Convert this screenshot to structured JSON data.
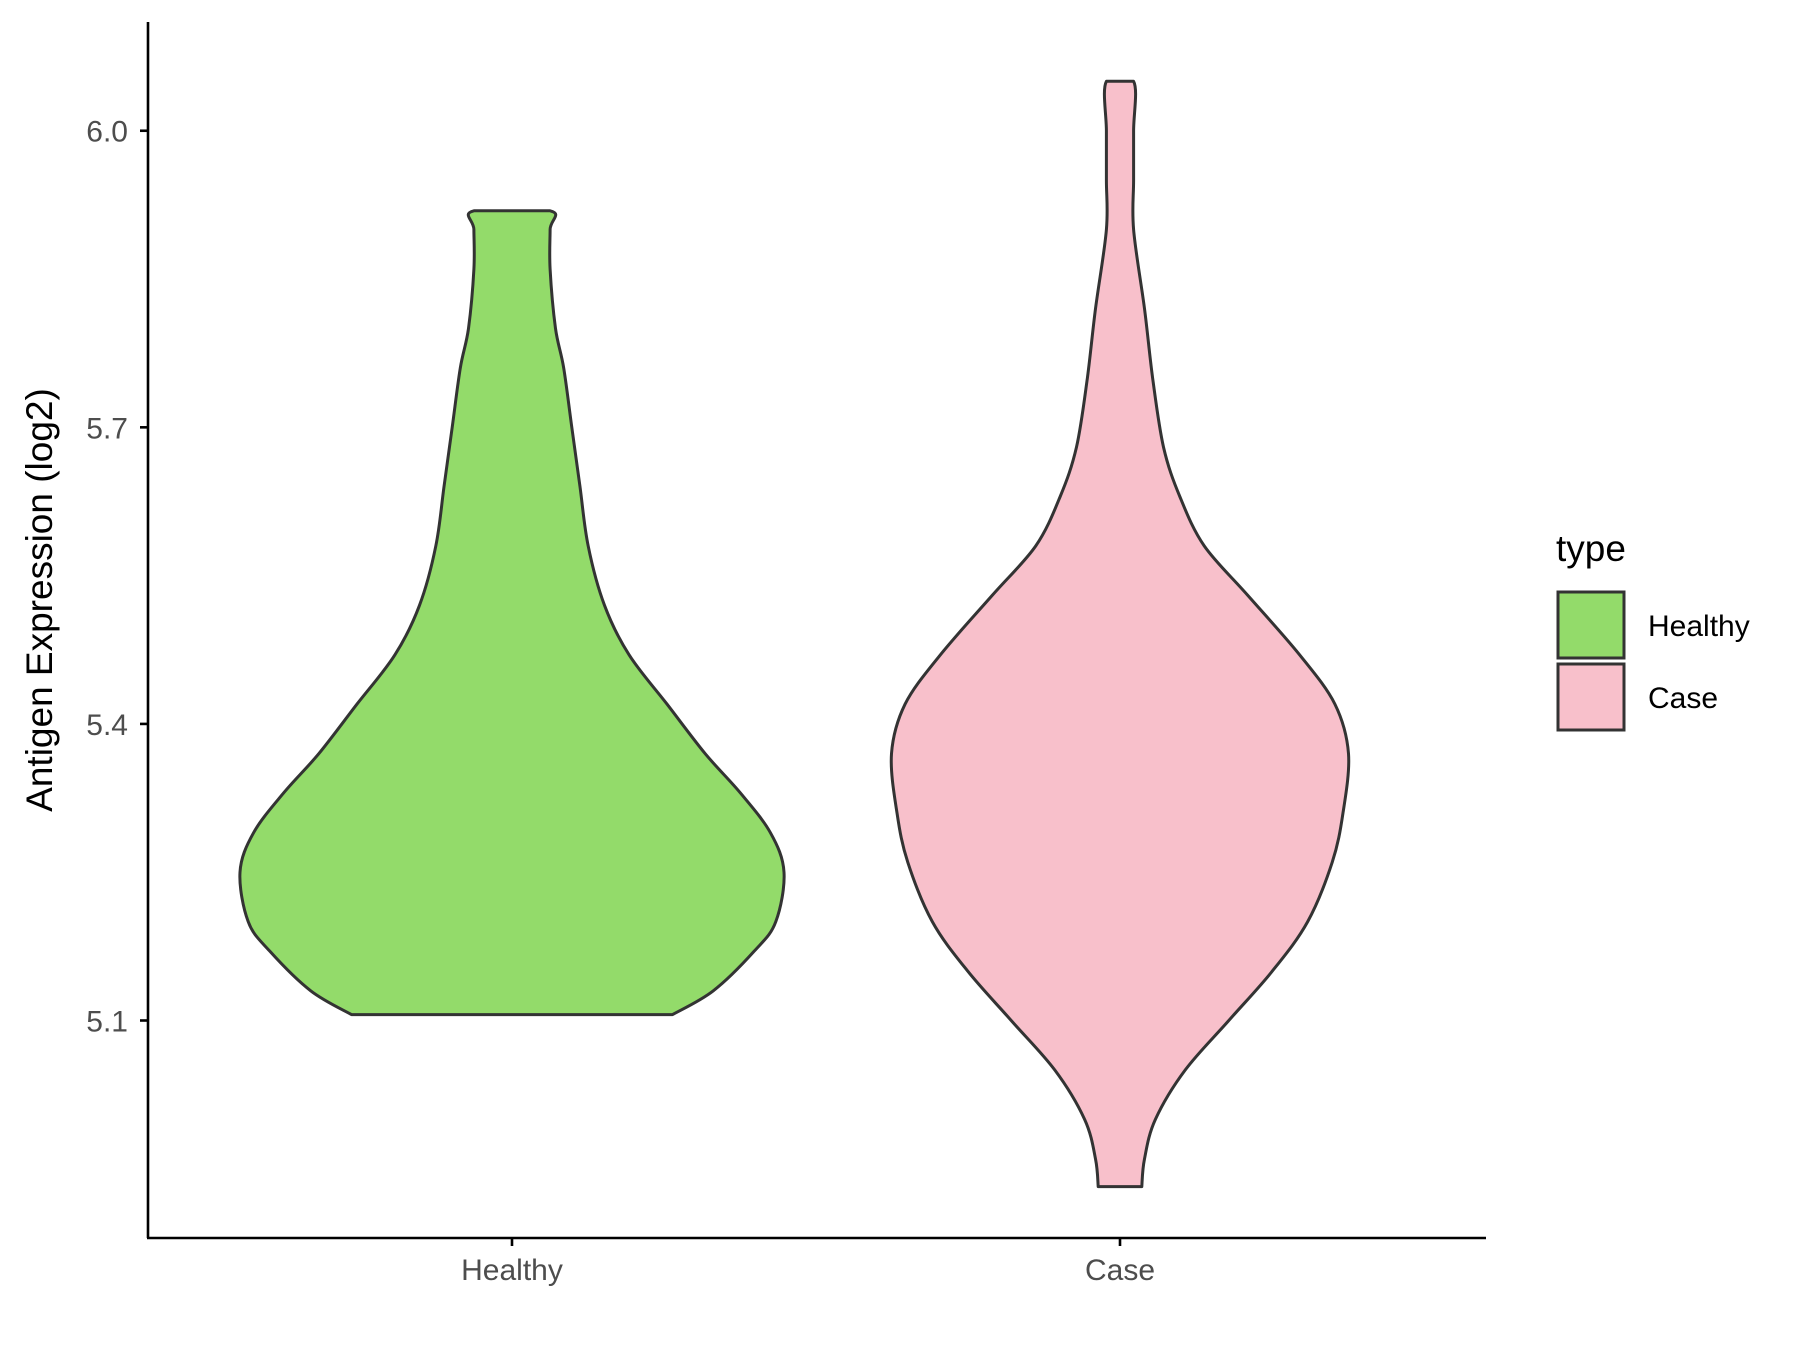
{
  "chart_data": {
    "type": "violin",
    "ylabel": "Antigen Expression (log2)",
    "ylim": [
      4.88,
      6.11
    ],
    "yticks": [
      "5.1",
      "5.4",
      "5.7",
      "6.0"
    ],
    "categories": [
      "Healthy",
      "Case"
    ],
    "legend": {
      "title": "type",
      "position": "right",
      "entries": [
        "Healthy",
        "Case"
      ]
    },
    "colors": {
      "Healthy": "#93DB6A",
      "Case": "#F8C0CB",
      "outline": "#333333"
    },
    "series": [
      {
        "name": "Healthy",
        "ymin": 5.106,
        "ymax": 5.919,
        "profile": [
          [
            5.106,
            0.59
          ],
          [
            5.13,
            0.74
          ],
          [
            5.17,
            0.89
          ],
          [
            5.2,
            0.97
          ],
          [
            5.25,
            1.0
          ],
          [
            5.29,
            0.95
          ],
          [
            5.33,
            0.84
          ],
          [
            5.37,
            0.71
          ],
          [
            5.42,
            0.57
          ],
          [
            5.47,
            0.43
          ],
          [
            5.52,
            0.34
          ],
          [
            5.58,
            0.28
          ],
          [
            5.64,
            0.25
          ],
          [
            5.7,
            0.22
          ],
          [
            5.76,
            0.19
          ],
          [
            5.8,
            0.16
          ],
          [
            5.86,
            0.14
          ],
          [
            5.9,
            0.14
          ],
          [
            5.919,
            0.14
          ]
        ]
      },
      {
        "name": "Case",
        "ymin": 4.932,
        "ymax": 6.05,
        "profile": [
          [
            4.932,
            0.08
          ],
          [
            4.96,
            0.09
          ],
          [
            5.0,
            0.13
          ],
          [
            5.05,
            0.24
          ],
          [
            5.1,
            0.4
          ],
          [
            5.15,
            0.56
          ],
          [
            5.2,
            0.69
          ],
          [
            5.26,
            0.78
          ],
          [
            5.31,
            0.82
          ],
          [
            5.37,
            0.84
          ],
          [
            5.42,
            0.79
          ],
          [
            5.47,
            0.66
          ],
          [
            5.53,
            0.47
          ],
          [
            5.58,
            0.31
          ],
          [
            5.63,
            0.22
          ],
          [
            5.68,
            0.16
          ],
          [
            5.75,
            0.12
          ],
          [
            5.82,
            0.09
          ],
          [
            5.9,
            0.05
          ],
          [
            5.95,
            0.05
          ],
          [
            6.0,
            0.05
          ],
          [
            6.05,
            0.05
          ]
        ]
      }
    ]
  }
}
